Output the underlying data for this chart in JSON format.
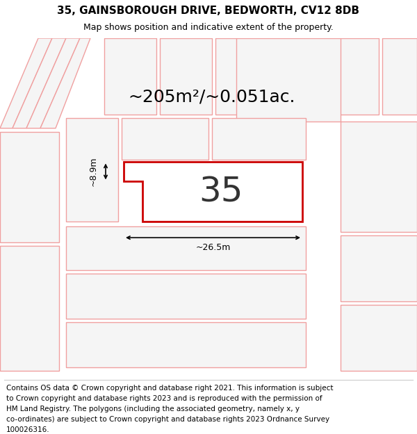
{
  "title_line1": "35, GAINSBOROUGH DRIVE, BEDWORTH, CV12 8DB",
  "title_line2": "Map shows position and indicative extent of the property.",
  "background_color": "#efefef",
  "highlight_polygon_color": "#cc0000",
  "highlight_polygon_fill": "#ffffff",
  "other_polygon_color": "#f0a0a0",
  "other_polygon_fill": "#f5f5f5",
  "area_text": "~205m²/~0.051ac.",
  "plot_number": "35",
  "dim_width": "~26.5m",
  "dim_height": "~8.9m",
  "title_fontsize": 11,
  "subtitle_fontsize": 9,
  "footer_fontsize": 7.5,
  "area_fontsize": 18,
  "plot_number_fontsize": 36,
  "dim_fontsize": 9,
  "footer_lines": [
    "Contains OS data © Crown copyright and database right 2021. This information is subject",
    "to Crown copyright and database rights 2023 and is reproduced with the permission of",
    "HM Land Registry. The polygons (including the associated geometry, namely x, y",
    "co-ordinates) are subject to Crown copyright and database rights 2023 Ordnance Survey",
    "100026316."
  ]
}
